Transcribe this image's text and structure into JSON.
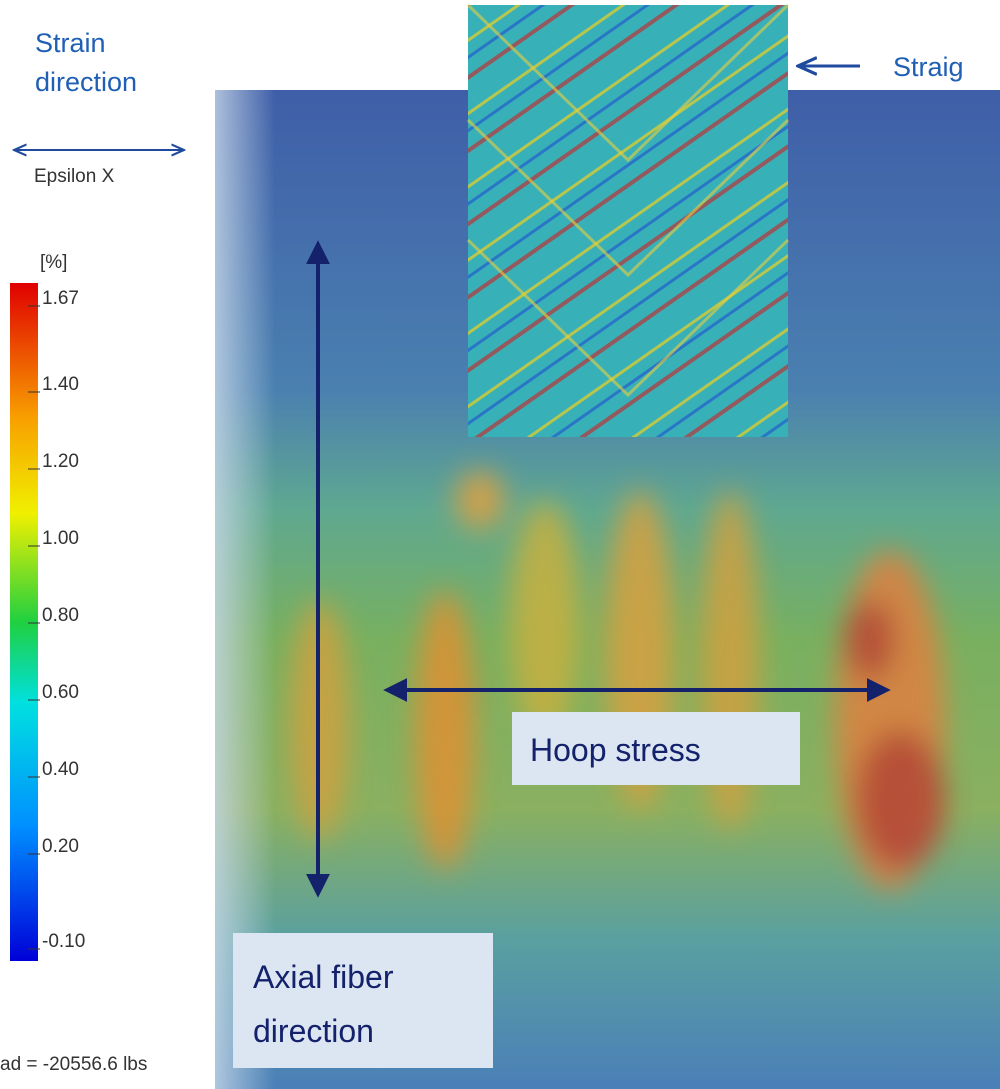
{
  "header": {
    "strain_direction": [
      "Strain",
      "direction"
    ],
    "straight_label": "Straig"
  },
  "legend": {
    "title": "Epsilon X",
    "unit": "[%]",
    "ticks": [
      "1.67",
      "1.40",
      "1.20",
      "1.00",
      "0.80",
      "0.60",
      "0.40",
      "0.20",
      "-0.10"
    ],
    "load": "ad = -20556.6 lbs"
  },
  "callouts": {
    "hoop": "Hoop stress",
    "axial": [
      "Axial fiber",
      "direction"
    ]
  }
}
